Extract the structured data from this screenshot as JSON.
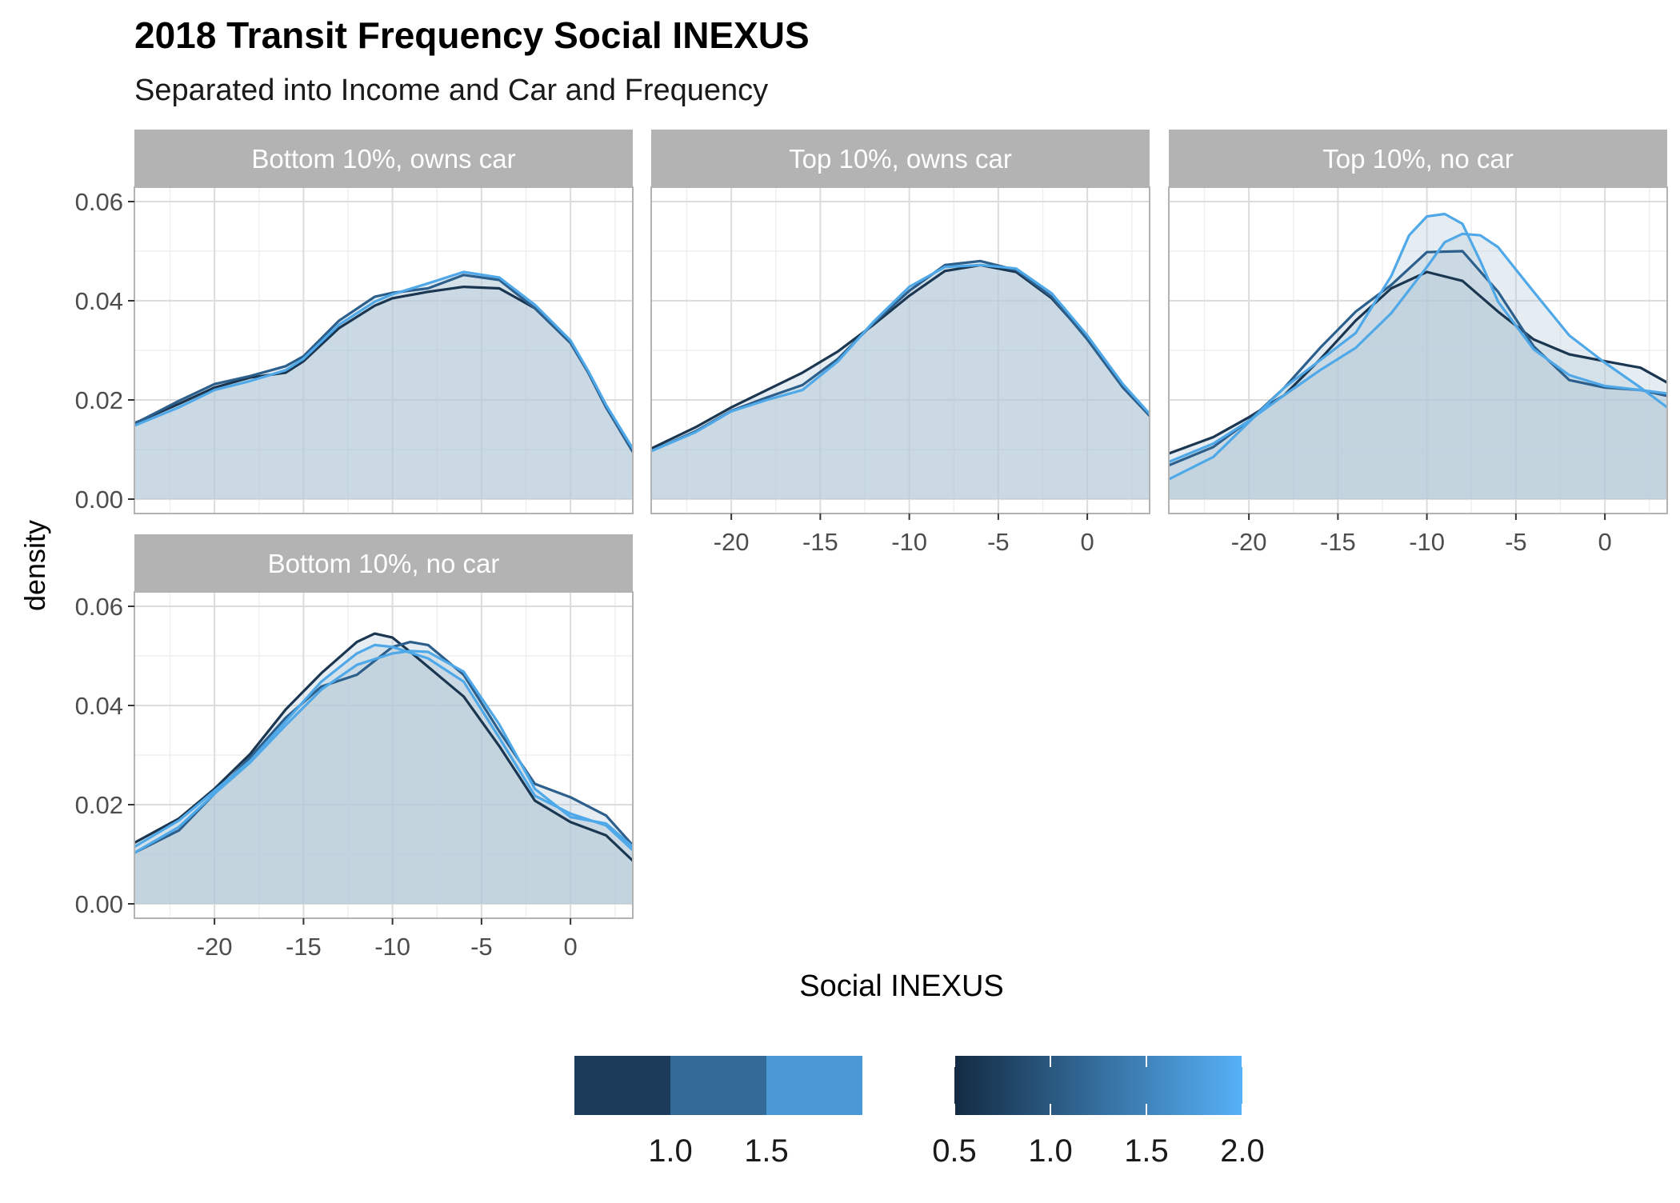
{
  "title": "2018 Transit Frequency Social INEXUS",
  "subtitle": "Separated into Income and Car and Frequency",
  "colors": {
    "fill": "#b6c9d8",
    "grid_major": "#dcdcdc",
    "grid_minor": "#efefef",
    "strip_bg": "#b3b3b3",
    "strip_text": "#ffffff",
    "axis_text": "#4d4d4d",
    "series": [
      "#1a3650",
      "#2c5f8c",
      "#4fa8e8"
    ]
  },
  "chart_data": {
    "type": "area",
    "xlabel": "Social INEXUS",
    "ylabel": "density",
    "xlim": [
      -24.5,
      3.5
    ],
    "ylim": [
      0,
      0.06
    ],
    "x_ticks": [
      -20,
      -15,
      -10,
      -5,
      0
    ],
    "y_ticks": [
      0.0,
      0.02,
      0.04,
      0.06
    ],
    "y_tick_labels": [
      "0.00",
      "0.02",
      "0.04",
      "0.06"
    ],
    "x_tick_labels": [
      "-20",
      "-15",
      "-10",
      "-5",
      "0"
    ],
    "panels": [
      {
        "label": "Bottom 10%, owns car",
        "series": [
          {
            "x": [
              -24.5,
              -22,
              -20,
              -18,
              -16,
              -15,
              -13,
              -11,
              -10,
              -8,
              -6,
              -4,
              -2,
              0,
              1,
              2,
              3.5
            ],
            "y": [
              0.0153,
              0.0192,
              0.0225,
              0.0245,
              0.0255,
              0.0278,
              0.0345,
              0.039,
              0.0405,
              0.0418,
              0.0428,
              0.0425,
              0.0385,
              0.0315,
              0.0255,
              0.0185,
              0.0098
            ]
          },
          {
            "x": [
              -24.5,
              -22,
              -20,
              -18,
              -16,
              -15,
              -13,
              -11,
              -10,
              -8,
              -6,
              -4,
              -2,
              0,
              1,
              2,
              3.5
            ],
            "y": [
              0.0152,
              0.0198,
              0.0232,
              0.0248,
              0.0268,
              0.0288,
              0.036,
              0.0408,
              0.0416,
              0.0425,
              0.0452,
              0.0442,
              0.0385,
              0.0315,
              0.0255,
              0.0185,
              0.0095
            ]
          },
          {
            "x": [
              -24.5,
              -22,
              -20,
              -18,
              -16,
              -15,
              -13,
              -11,
              -10,
              -8,
              -6,
              -4,
              -2,
              0,
              1,
              2,
              3.5
            ],
            "y": [
              0.0148,
              0.0185,
              0.022,
              0.0238,
              0.026,
              0.0283,
              0.0352,
              0.0398,
              0.0413,
              0.0435,
              0.0458,
              0.0447,
              0.0392,
              0.032,
              0.0258,
              0.019,
              0.0102
            ]
          }
        ]
      },
      {
        "label": "Top 10%, owns car",
        "series": [
          {
            "x": [
              -24.5,
              -22,
              -20,
              -18,
              -16,
              -14,
              -12,
              -10,
              -8,
              -6,
              -4,
              -2,
              0,
              2,
              3.5
            ],
            "y": [
              0.0102,
              0.0145,
              0.0185,
              0.022,
              0.0255,
              0.0298,
              0.0352,
              0.041,
              0.046,
              0.0472,
              0.0458,
              0.0405,
              0.0325,
              0.0228,
              0.0168
            ]
          },
          {
            "x": [
              -24.5,
              -22,
              -20,
              -18,
              -16,
              -14,
              -12,
              -10,
              -8,
              -6,
              -4,
              -2,
              0,
              2,
              3.5
            ],
            "y": [
              0.0097,
              0.0137,
              0.0178,
              0.0205,
              0.023,
              0.0283,
              0.0355,
              0.042,
              0.0472,
              0.048,
              0.0462,
              0.0408,
              0.0322,
              0.0225,
              0.0168
            ]
          },
          {
            "x": [
              -24.5,
              -22,
              -20,
              -18,
              -16,
              -14,
              -12,
              -10,
              -8,
              -6,
              -4,
              -2,
              0,
              2,
              3.5
            ],
            "y": [
              0.0097,
              0.0135,
              0.0177,
              0.02,
              0.022,
              0.0278,
              0.0358,
              0.0428,
              0.0468,
              0.0472,
              0.0465,
              0.0415,
              0.033,
              0.0232,
              0.0172
            ]
          }
        ]
      },
      {
        "label": "Top 10%, no car",
        "series": [
          {
            "x": [
              -24.5,
              -22,
              -20,
              -18,
              -16,
              -14,
              -12,
              -10,
              -8,
              -6,
              -4,
              -2,
              0,
              2,
              3.5
            ],
            "y": [
              0.0092,
              0.0125,
              0.0165,
              0.021,
              0.0282,
              0.036,
              0.0425,
              0.0458,
              0.044,
              0.0378,
              0.0322,
              0.0292,
              0.0278,
              0.0265,
              0.0235
            ]
          },
          {
            "x": [
              -24.5,
              -22,
              -20,
              -18,
              -16,
              -14,
              -12,
              -10,
              -8,
              -6,
              -4,
              -2,
              0,
              2,
              3.5
            ],
            "y": [
              0.0068,
              0.0105,
              0.0158,
              0.0225,
              0.0305,
              0.0378,
              0.0432,
              0.0498,
              0.05,
              0.0418,
              0.0308,
              0.024,
              0.0225,
              0.022,
              0.0208
            ]
          },
          {
            "x": [
              -24.5,
              -22,
              -20,
              -18,
              -16,
              -14,
              -12,
              -11,
              -10,
              -9,
              -8,
              -7,
              -6,
              -4,
              -2,
              0,
              2,
              3.5
            ],
            "y": [
              0.004,
              0.0085,
              0.0155,
              0.0225,
              0.028,
              0.0335,
              0.045,
              0.0532,
              0.057,
              0.0575,
              0.0555,
              0.048,
              0.0398,
              0.0302,
              0.025,
              0.0228,
              0.022,
              0.0213
            ]
          },
          {
            "x": [
              -24.5,
              -22,
              -20,
              -18,
              -16,
              -14,
              -12,
              -10,
              -9,
              -8,
              -7,
              -6,
              -4,
              -2,
              0,
              2,
              3.5
            ],
            "y": [
              0.0075,
              0.0112,
              0.0158,
              0.021,
              0.026,
              0.0305,
              0.0375,
              0.0468,
              0.0518,
              0.0535,
              0.0532,
              0.0508,
              0.0418,
              0.033,
              0.0275,
              0.0225,
              0.0185
            ]
          }
        ]
      },
      {
        "label": "Bottom 10%, no car",
        "series": [
          {
            "x": [
              -24.5,
              -22,
              -20,
              -18,
              -16,
              -14,
              -12,
              -11,
              -10,
              -9,
              -8,
              -6,
              -4,
              -2,
              0,
              2,
              3.5
            ],
            "y": [
              0.0123,
              0.0172,
              0.0232,
              0.0302,
              0.0392,
              0.0465,
              0.0528,
              0.0545,
              0.0537,
              0.0508,
              0.0478,
              0.0418,
              0.0318,
              0.0208,
              0.0165,
              0.0138,
              0.0087
            ]
          },
          {
            "x": [
              -24.5,
              -22,
              -20,
              -18,
              -16,
              -14,
              -12,
              -10,
              -9,
              -8,
              -6,
              -4,
              -2,
              0,
              2,
              3.5
            ],
            "y": [
              0.0103,
              0.0148,
              0.0222,
              0.0295,
              0.0375,
              0.0438,
              0.0462,
              0.0518,
              0.0528,
              0.0522,
              0.0462,
              0.0348,
              0.0242,
              0.0215,
              0.0178,
              0.0118
            ]
          },
          {
            "x": [
              -24.5,
              -22,
              -20,
              -18,
              -16,
              -14,
              -12,
              -11,
              -10,
              -8,
              -6,
              -4,
              -2,
              0,
              2,
              3.5
            ],
            "y": [
              0.0115,
              0.0168,
              0.0228,
              0.0288,
              0.0368,
              0.0448,
              0.0505,
              0.0522,
              0.0518,
              0.0495,
              0.0448,
              0.0335,
              0.0218,
              0.0182,
              0.0158,
              0.0108
            ]
          },
          {
            "x": [
              -24.5,
              -22,
              -20,
              -18,
              -16,
              -14,
              -12,
              -10,
              -9,
              -8,
              -6,
              -4,
              -2,
              0,
              2,
              3.5
            ],
            "y": [
              0.0103,
              0.0155,
              0.0222,
              0.0285,
              0.036,
              0.0432,
              0.0482,
              0.0505,
              0.051,
              0.0508,
              0.0468,
              0.0362,
              0.0232,
              0.0175,
              0.0162,
              0.0115
            ]
          }
        ]
      }
    ],
    "legend": {
      "position": "bottom",
      "discrete": {
        "labels": [
          "1.0",
          "1.5"
        ],
        "colors": [
          "#1c3a5a",
          "#336a98",
          "#4a99d6"
        ]
      },
      "continuous": {
        "labels": [
          "0.5",
          "1.0",
          "1.5",
          "2.0"
        ],
        "gradient": [
          "#132b43",
          "#56b1f7"
        ]
      }
    }
  }
}
